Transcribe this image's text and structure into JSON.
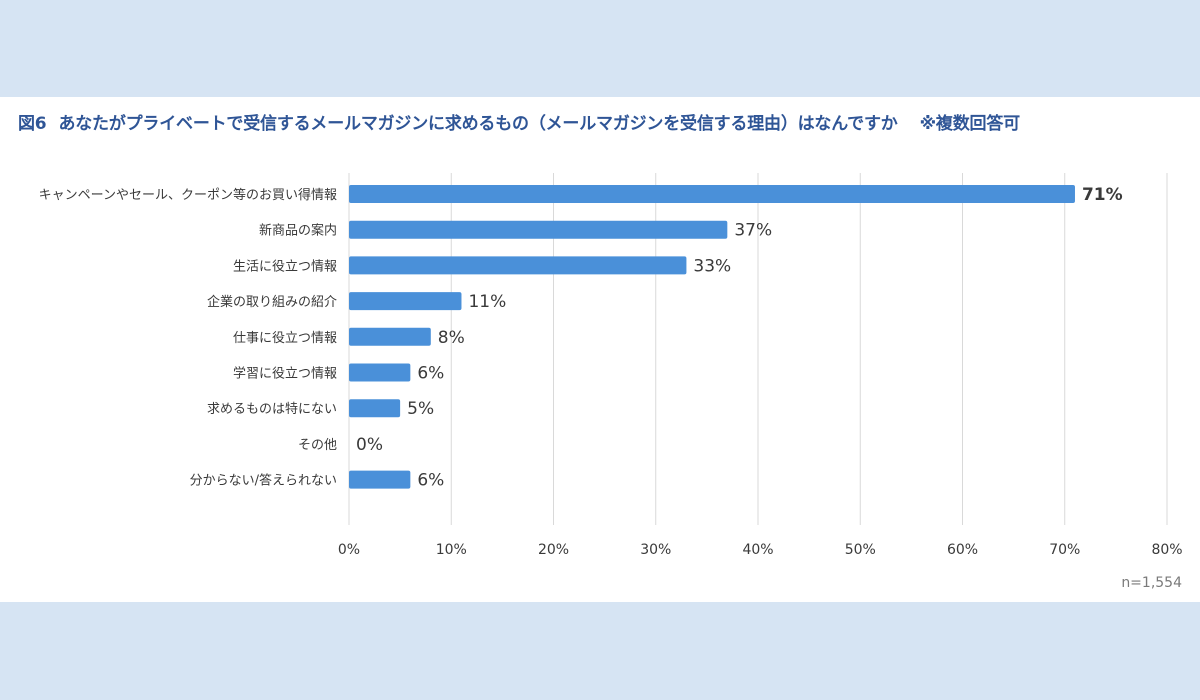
{
  "title": {
    "figure": "図6",
    "text": "あなたがプライベートで受信するメールマガジンに求めるもの（メールマガジンを受信する理由）はなんですか",
    "note": "※複数回答可"
  },
  "colors": {
    "bar": "#4a90d9",
    "title": "#2f5596",
    "grid": "#d9d9d9",
    "background": "#d6e4f3"
  },
  "sample_size": "n=1,554",
  "chart_data": {
    "type": "bar",
    "orientation": "horizontal",
    "title": "図6 あなたがプライベートで受信するメールマガジンに求めるもの（メールマガジンを受信する理由）はなんですか ※複数回答可",
    "categories": [
      "キャンペーンやセール、クーポン等のお買い得情報",
      "新商品の案内",
      "生活に役立つ情報",
      "企業の取り組みの紹介",
      "仕事に役立つ情報",
      "学習に役立つ情報",
      "求めるものは特にない",
      "その他",
      "分からない/答えられない"
    ],
    "values": [
      71,
      37,
      33,
      11,
      8,
      6,
      5,
      0,
      6
    ],
    "value_labels": [
      "71%",
      "37%",
      "33%",
      "11%",
      "8%",
      "6%",
      "5%",
      "0%",
      "6%"
    ],
    "highlight_index": 0,
    "xlim": [
      0,
      80
    ],
    "xticks": [
      "0%",
      "10%",
      "20%",
      "30%",
      "40%",
      "50%",
      "60%",
      "70%",
      "80%"
    ],
    "grid": true,
    "xlabel": "",
    "ylabel": ""
  }
}
